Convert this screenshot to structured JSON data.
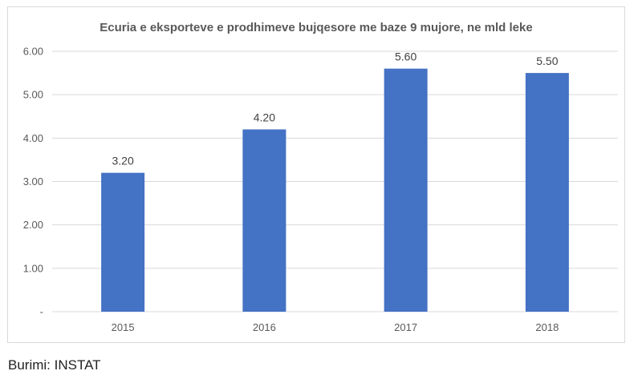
{
  "chart_data": {
    "type": "bar",
    "title": "Ecuria e eksporteve e prodhimeve bujqesore me baze 9 mujore, ne mld leke",
    "categories": [
      "2015",
      "2016",
      "2017",
      "2018"
    ],
    "values": [
      3.2,
      4.2,
      5.6,
      5.5
    ],
    "value_labels": [
      "3.20",
      "4.20",
      "5.60",
      "5.50"
    ],
    "y_ticks": [
      0,
      1,
      2,
      3,
      4,
      5,
      6
    ],
    "y_tick_labels": [
      "-",
      "1.00",
      "2.00",
      "3.00",
      "4.00",
      "5.00",
      "6.00"
    ],
    "ylim": [
      0,
      6
    ],
    "grid": true,
    "legend": "none",
    "bar_color": "#4472c4",
    "grid_color": "#d9d9d9"
  },
  "source_note": "Burimi: INSTAT"
}
